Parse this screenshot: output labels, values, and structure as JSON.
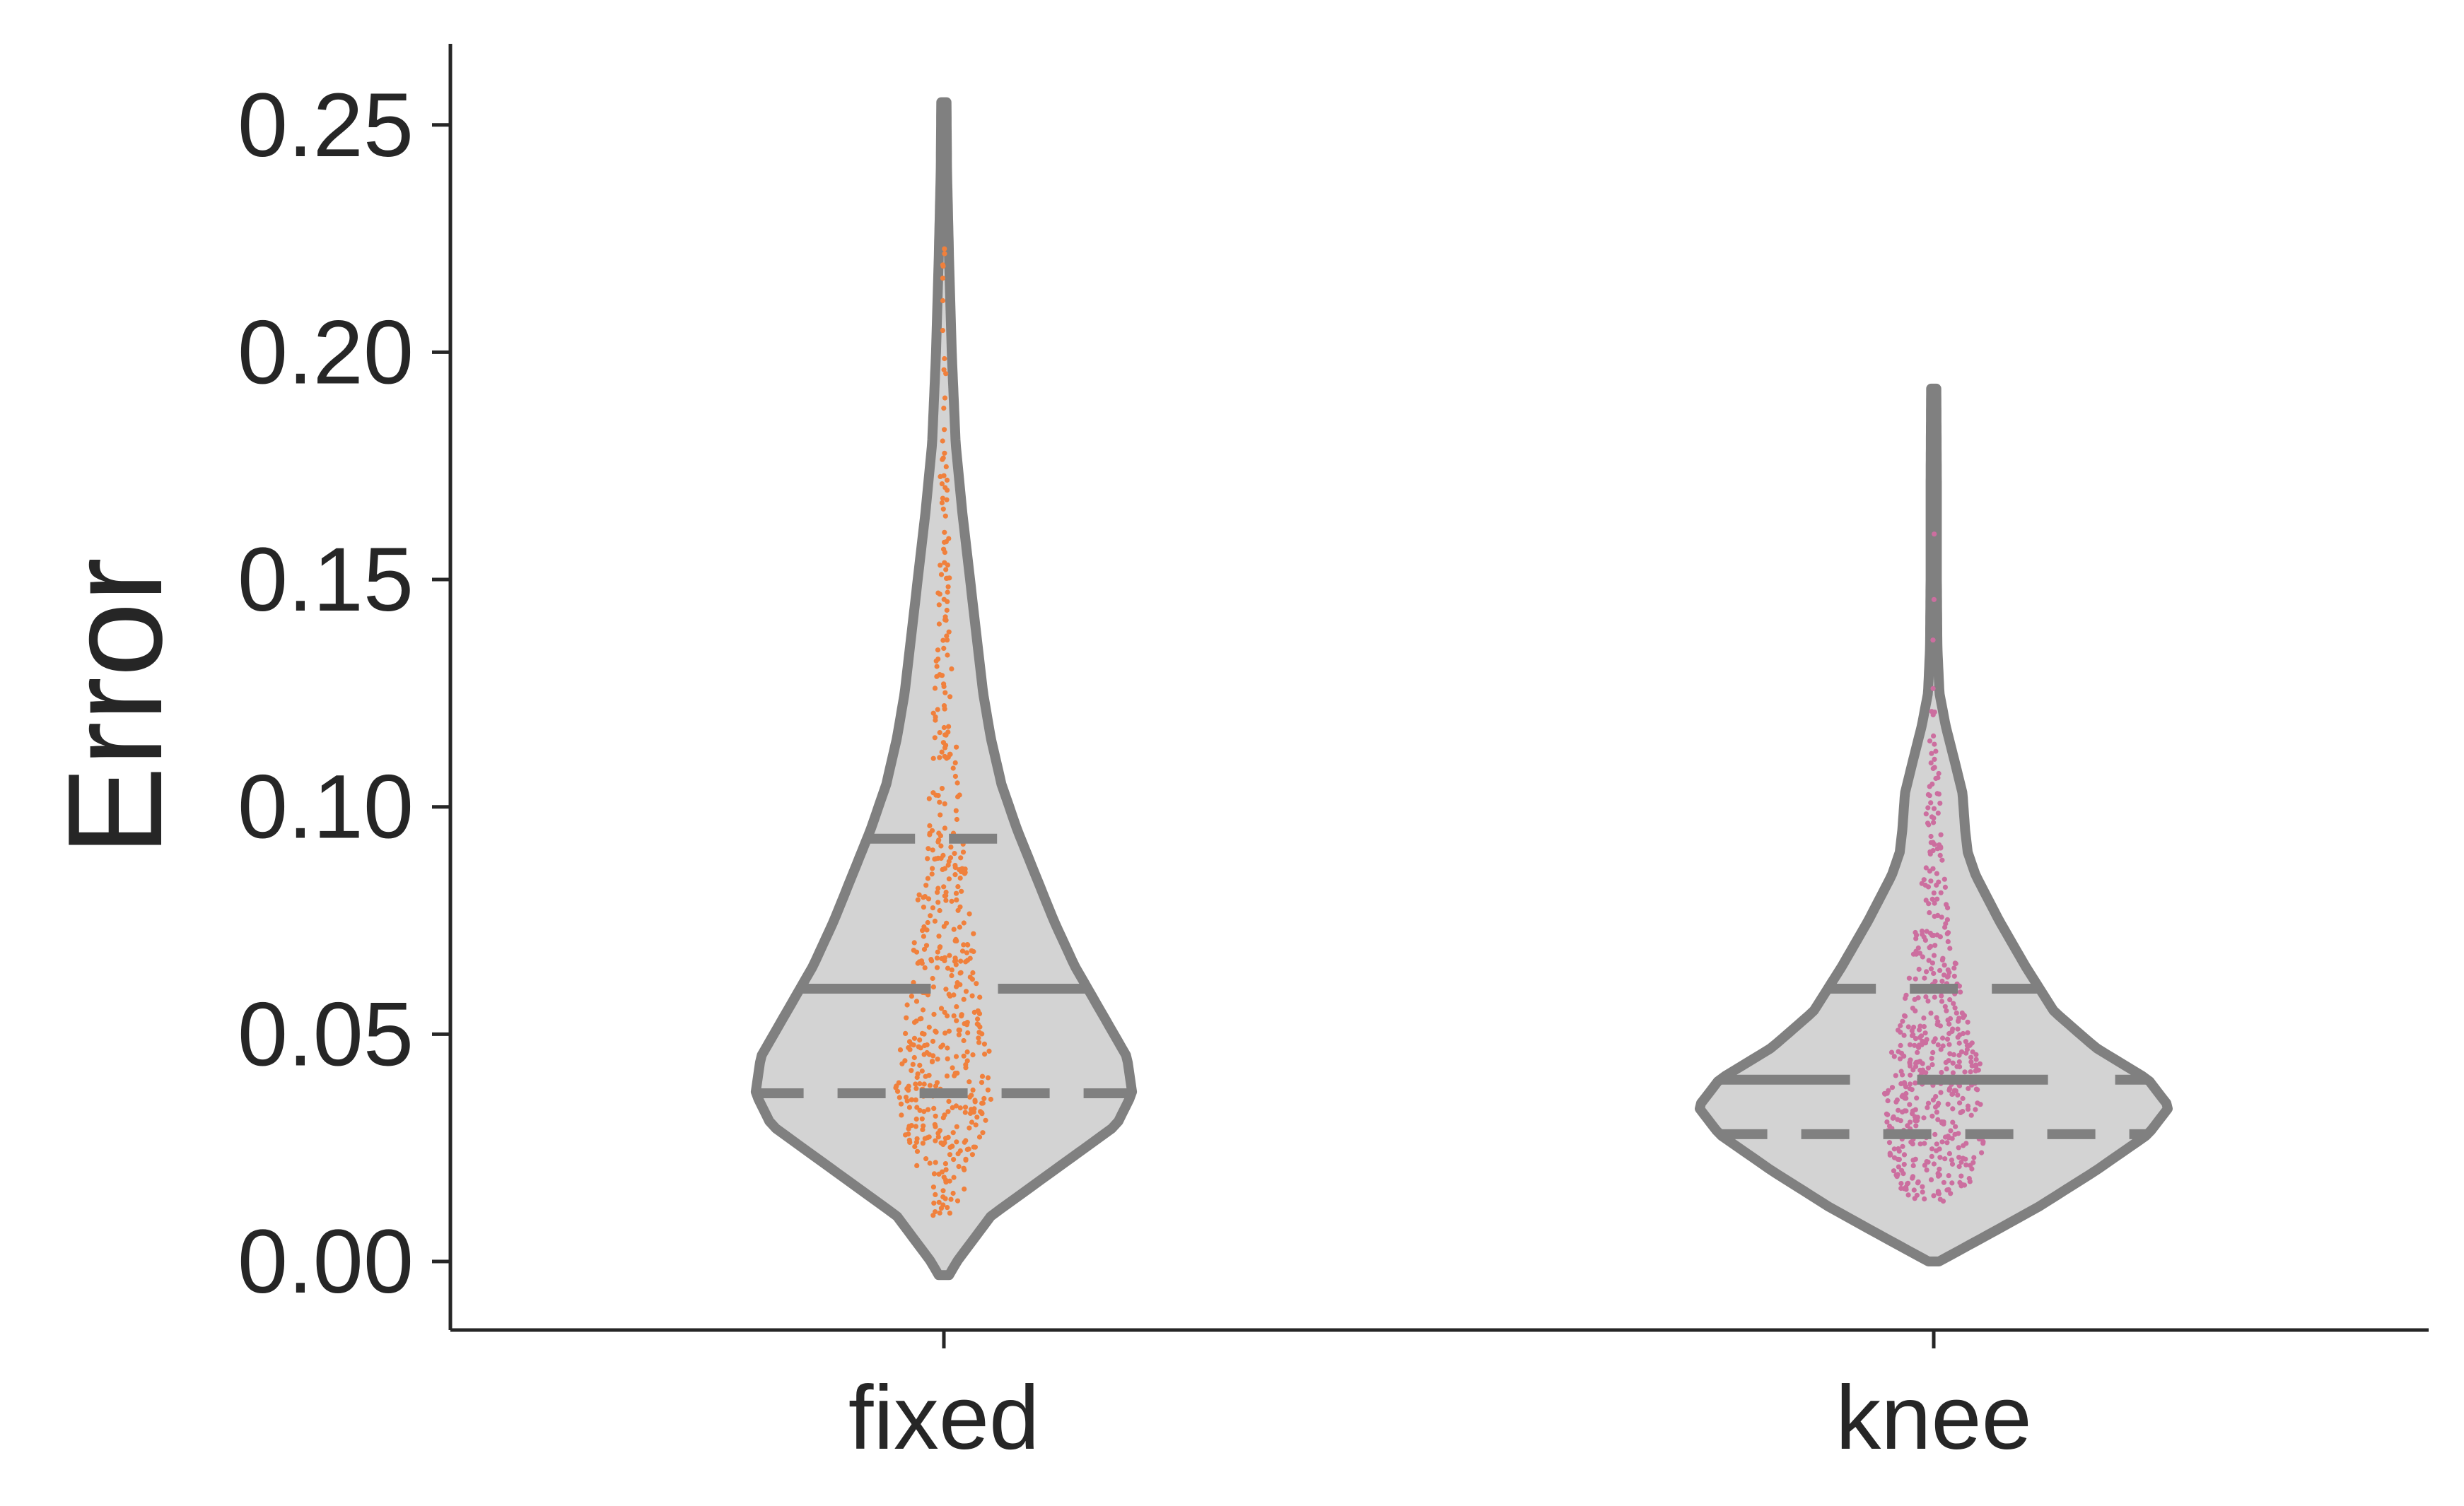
{
  "chart_data": {
    "type": "violin",
    "ylabel": "Error",
    "xlabel": "",
    "categories": [
      "fixed",
      "knee"
    ],
    "ylim": [
      -0.015,
      0.268
    ],
    "yticks": [
      0.0,
      0.05,
      0.1,
      0.15,
      0.2,
      0.25
    ],
    "ytick_labels": [
      "0.00",
      "0.05",
      "0.10",
      "0.15",
      "0.20",
      "0.25"
    ],
    "grid": false,
    "legend": "none",
    "violin_fill": "#d3d3d3",
    "violin_edge": "#808080",
    "series": [
      {
        "category": "fixed",
        "point_color": "#f0803c",
        "min": -0.003,
        "max": 0.255,
        "q1": 0.037,
        "median": 0.06,
        "q3": 0.093,
        "density": [
          [
            -0.003,
            0.02
          ],
          [
            0.0,
            0.05
          ],
          [
            0.01,
            0.18
          ],
          [
            0.02,
            0.42
          ],
          [
            0.03,
            0.66
          ],
          [
            0.037,
            0.72
          ],
          [
            0.045,
            0.7
          ],
          [
            0.055,
            0.6
          ],
          [
            0.065,
            0.5
          ],
          [
            0.075,
            0.42
          ],
          [
            0.085,
            0.35
          ],
          [
            0.095,
            0.28
          ],
          [
            0.105,
            0.22
          ],
          [
            0.115,
            0.18
          ],
          [
            0.125,
            0.15
          ],
          [
            0.14,
            0.12
          ],
          [
            0.155,
            0.09
          ],
          [
            0.165,
            0.07
          ],
          [
            0.18,
            0.045
          ],
          [
            0.2,
            0.03
          ],
          [
            0.22,
            0.02
          ],
          [
            0.24,
            0.012
          ],
          [
            0.255,
            0.01
          ]
        ]
      },
      {
        "category": "knee",
        "point_color": "#cc6e9f",
        "min": 0.0,
        "max": 0.192,
        "q1": 0.028,
        "median": 0.04,
        "q3": 0.06,
        "density": [
          [
            0.0,
            0.02
          ],
          [
            0.005,
            0.18
          ],
          [
            0.012,
            0.4
          ],
          [
            0.02,
            0.62
          ],
          [
            0.028,
            0.82
          ],
          [
            0.034,
            0.9
          ],
          [
            0.04,
            0.82
          ],
          [
            0.047,
            0.62
          ],
          [
            0.055,
            0.46
          ],
          [
            0.065,
            0.35
          ],
          [
            0.075,
            0.25
          ],
          [
            0.085,
            0.16
          ],
          [
            0.09,
            0.13
          ],
          [
            0.095,
            0.12
          ],
          [
            0.103,
            0.11
          ],
          [
            0.11,
            0.08
          ],
          [
            0.118,
            0.045
          ],
          [
            0.125,
            0.022
          ],
          [
            0.135,
            0.014
          ],
          [
            0.15,
            0.012
          ],
          [
            0.17,
            0.012
          ],
          [
            0.192,
            0.01
          ]
        ]
      }
    ]
  }
}
